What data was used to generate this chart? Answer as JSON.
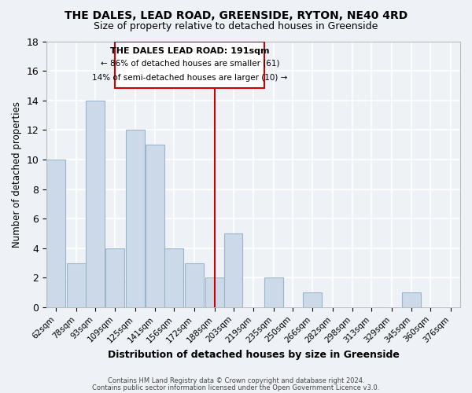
{
  "title": "THE DALES, LEAD ROAD, GREENSIDE, RYTON, NE40 4RD",
  "subtitle": "Size of property relative to detached houses in Greenside",
  "xlabel": "Distribution of detached houses by size in Greenside",
  "ylabel": "Number of detached properties",
  "bar_color": "#ccd9e8",
  "bar_edge_color": "#9ab4cc",
  "tick_labels": [
    "62sqm",
    "78sqm",
    "93sqm",
    "109sqm",
    "125sqm",
    "141sqm",
    "156sqm",
    "172sqm",
    "188sqm",
    "203sqm",
    "219sqm",
    "235sqm",
    "250sqm",
    "266sqm",
    "282sqm",
    "298sqm",
    "313sqm",
    "329sqm",
    "345sqm",
    "360sqm",
    "376sqm"
  ],
  "counts": [
    10,
    3,
    14,
    4,
    12,
    11,
    4,
    3,
    2,
    5,
    0,
    2,
    0,
    1,
    0,
    0,
    0,
    0,
    1,
    0
  ],
  "bin_centers": [
    62,
    78,
    93,
    109,
    125,
    141,
    156,
    172,
    188,
    203,
    219,
    235,
    250,
    266,
    282,
    298,
    313,
    329,
    345,
    360
  ],
  "bin_width": 15,
  "all_ticks": [
    62,
    78,
    93,
    109,
    125,
    141,
    156,
    172,
    188,
    203,
    219,
    235,
    250,
    266,
    282,
    298,
    313,
    329,
    345,
    360,
    376
  ],
  "reference_line_x": 188,
  "reference_line_label": "THE DALES LEAD ROAD: 191sqm",
  "annotation_line2": "← 86% of detached houses are smaller (61)",
  "annotation_line3": "14% of semi-detached houses are larger (10) →",
  "ylim": [
    0,
    18
  ],
  "yticks": [
    0,
    2,
    4,
    6,
    8,
    10,
    12,
    14,
    16,
    18
  ],
  "footer1": "Contains HM Land Registry data © Crown copyright and database right 2024.",
  "footer2": "Contains public sector information licensed under the Open Government Licence v3.0.",
  "background_color": "#eef2f7",
  "grid_color": "#ffffff",
  "box_edge_color": "#cc0000",
  "ref_line_color": "#cc0000"
}
